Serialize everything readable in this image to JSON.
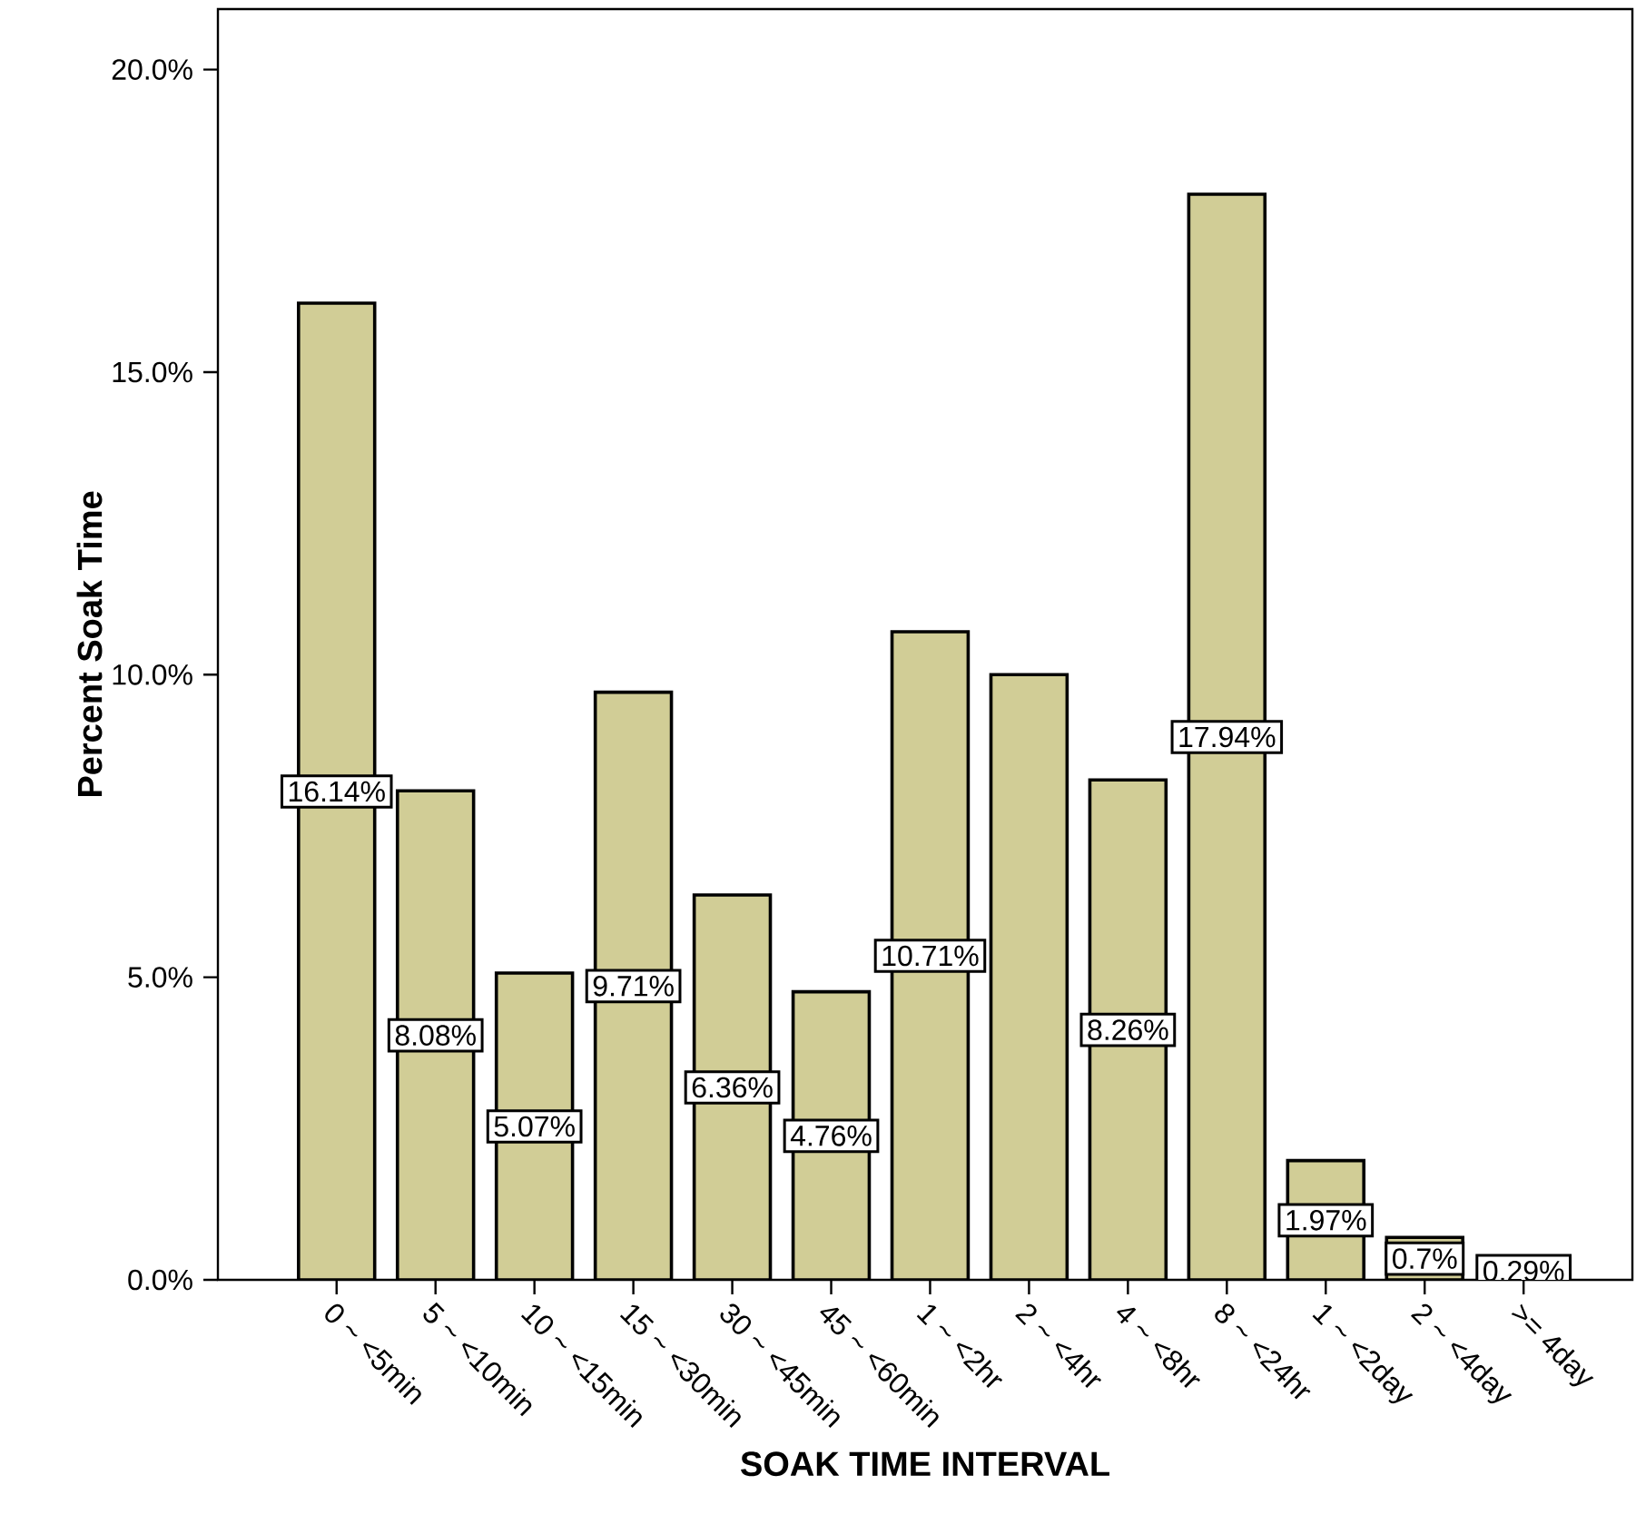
{
  "chart_data": {
    "type": "bar",
    "xlabel": "SOAK TIME INTERVAL",
    "ylabel": "Percent Soak Time",
    "categories": [
      "0 ~ <5min",
      "5 ~ <10min",
      "10 ~ <15min",
      "15 ~ <30min",
      "30 ~ <45min",
      "45 ~ <60min",
      "1 ~ <2hr",
      "2 ~ <4hr",
      "4 ~ <8hr",
      "8 ~ <24hr",
      "1 ~ <2day",
      "2 ~ <4day",
      ">= 4day"
    ],
    "values": [
      16.14,
      8.08,
      5.07,
      9.71,
      6.36,
      4.76,
      10.71,
      10.0,
      8.26,
      17.94,
      1.97,
      0.7,
      0.29
    ],
    "value_labels": [
      "16.14%",
      "8.08%",
      "5.07%",
      "9.71%",
      "6.36%",
      "4.76%",
      "10.71%",
      null,
      "8.26%",
      "17.94%",
      "1.97%",
      "0.7%",
      "0.29%"
    ],
    "color": "#d1cd96",
    "ylim": [
      0,
      21
    ],
    "yticks": [
      {
        "value": 0,
        "label": "0.0%"
      },
      {
        "value": 5,
        "label": "5.0%"
      },
      {
        "value": 10,
        "label": "10.0%"
      },
      {
        "value": 15,
        "label": "15.0%"
      },
      {
        "value": 20,
        "label": "20.0%"
      }
    ],
    "grid": false
  }
}
